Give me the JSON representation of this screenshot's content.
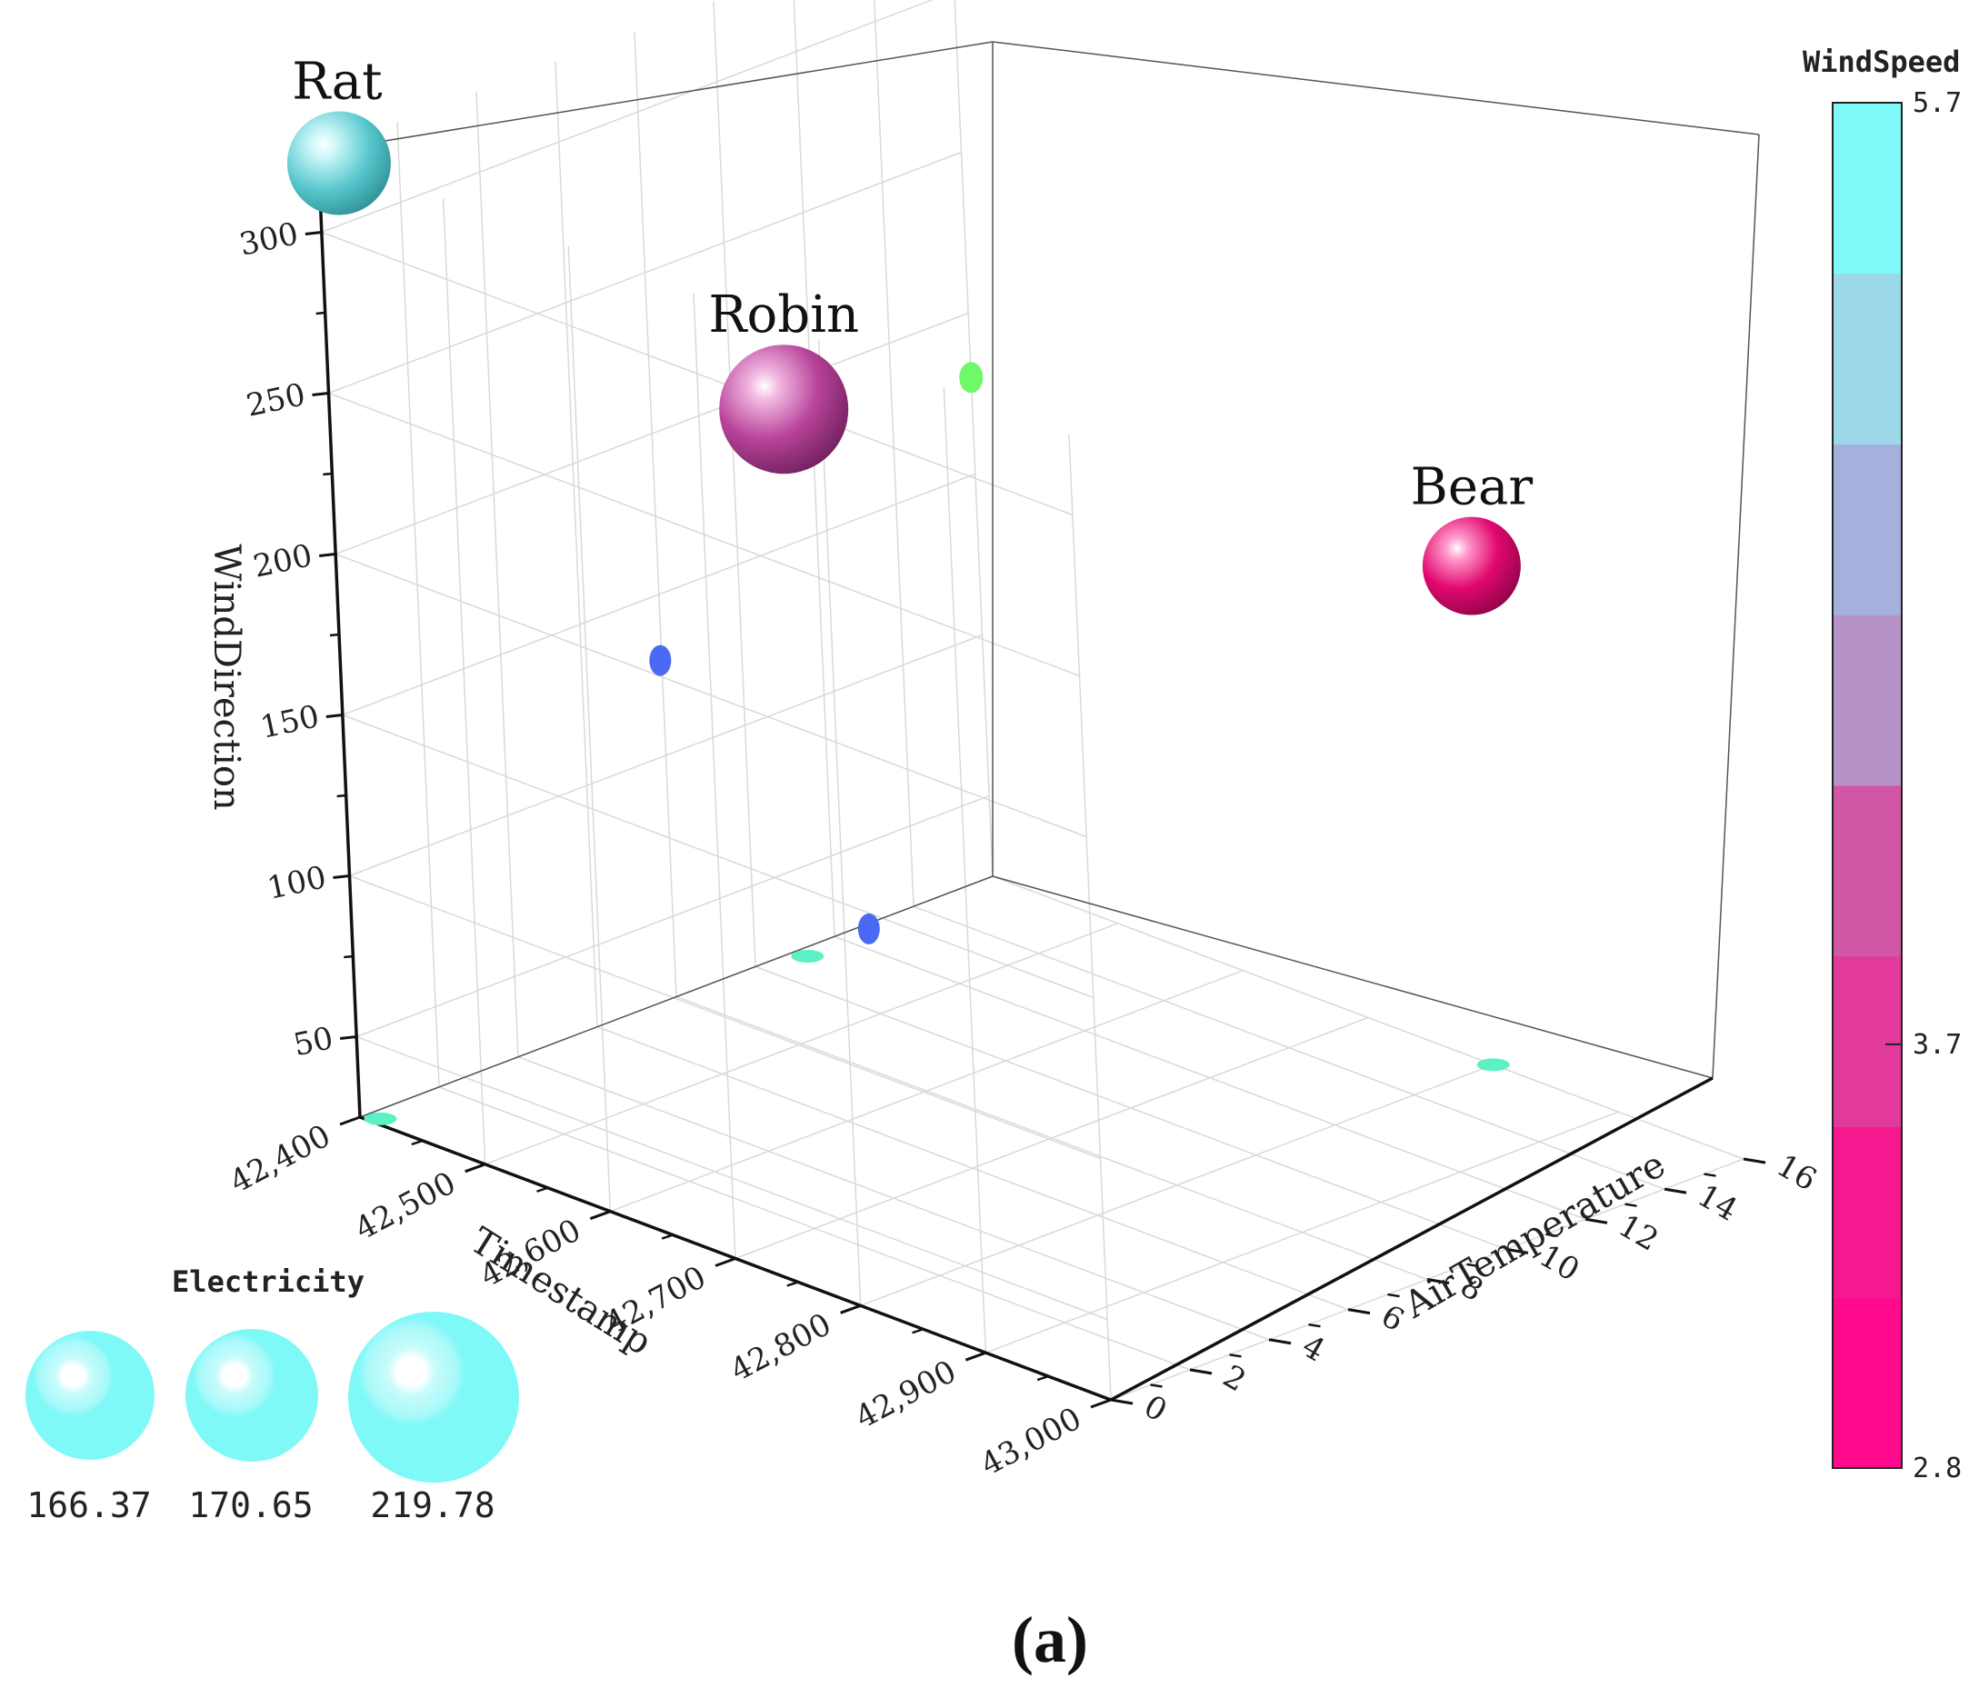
{
  "chart_data": {
    "type": "scatter3d-bubble",
    "caption": "(a)",
    "axes": {
      "x": {
        "title": "Timestamp",
        "range": [
          42400,
          43000
        ],
        "ticks": [
          42400,
          42500,
          42600,
          42700,
          42800,
          42900,
          43000
        ],
        "tick_labels": [
          "42,400",
          "42,500",
          "42,600",
          "42,700",
          "42,800",
          "42,900",
          "43,000"
        ]
      },
      "y": {
        "title": "AirTemperature",
        "range": [
          0,
          16
        ],
        "ticks": [
          0,
          2,
          4,
          6,
          8,
          10,
          12,
          14,
          16
        ],
        "tick_labels": [
          "0",
          "2",
          "4",
          "6",
          "8",
          "10",
          "12",
          "14",
          "16"
        ]
      },
      "z": {
        "title": "WindDirection",
        "range": [
          25,
          325
        ],
        "ticks": [
          50,
          100,
          150,
          200,
          250,
          300
        ],
        "tick_labels": [
          "50",
          "100",
          "150",
          "200",
          "250",
          "300"
        ]
      }
    },
    "colorbar": {
      "title": "WindSpeed",
      "range": [
        2.8,
        5.7
      ],
      "tick_labels": [
        "5.7",
        "3.7",
        "2.8"
      ],
      "tick_values": [
        5.7,
        3.7,
        2.8
      ],
      "colors": [
        "#ff0a8c",
        "#f5198f",
        "#e13a9a",
        "#d157a6",
        "#b792c7",
        "#a6b0dc",
        "#9bd8e8",
        "#7ff8f8"
      ]
    },
    "bubbles": [
      {
        "label": "Rat",
        "timestamp": 42410,
        "air_temperature": 0.2,
        "wind_direction": 322,
        "electricity": 219.78,
        "wind_speed": 5.7,
        "color": "#52c6cc"
      },
      {
        "label": "Robin",
        "timestamp": 42410,
        "air_temperature": 11,
        "wind_direction": 195,
        "electricity": 219.78,
        "wind_speed": 3.9,
        "color": "#b73f94"
      },
      {
        "label": "Bear",
        "timestamp": 42800,
        "air_temperature": 16,
        "wind_direction": 180,
        "electricity": 166.37,
        "wind_speed": 3.0,
        "color": "#e2086f"
      }
    ],
    "projections": {
      "back_wall": {
        "color": "#4a6af4",
        "points": [
          {
            "timestamp": 42405,
            "wind_direction": 323
          },
          {
            "timestamp": 42660,
            "wind_direction": 205
          },
          {
            "timestamp": 42820,
            "wind_direction": 145
          }
        ]
      },
      "side_wall": {
        "color": "#6ef86a",
        "points": [
          {
            "air_temperature": 0.2,
            "wind_direction": 322
          },
          {
            "air_temperature": 11,
            "wind_direction": 195
          },
          {
            "air_temperature": 16,
            "wind_direction": 180
          }
        ]
      },
      "floor": {
        "color": "#5cf1c4",
        "points": [
          {
            "timestamp": 42410,
            "air_temperature": 0.2
          },
          {
            "timestamp": 42410,
            "air_temperature": 11
          },
          {
            "timestamp": 42800,
            "air_temperature": 16
          }
        ]
      }
    },
    "size_legend": {
      "title": "Electricity",
      "values": [
        166.37,
        170.65,
        219.78
      ],
      "labels": [
        "166.37",
        "170.65",
        "219.78"
      ],
      "color": "#7ff8f8"
    }
  }
}
